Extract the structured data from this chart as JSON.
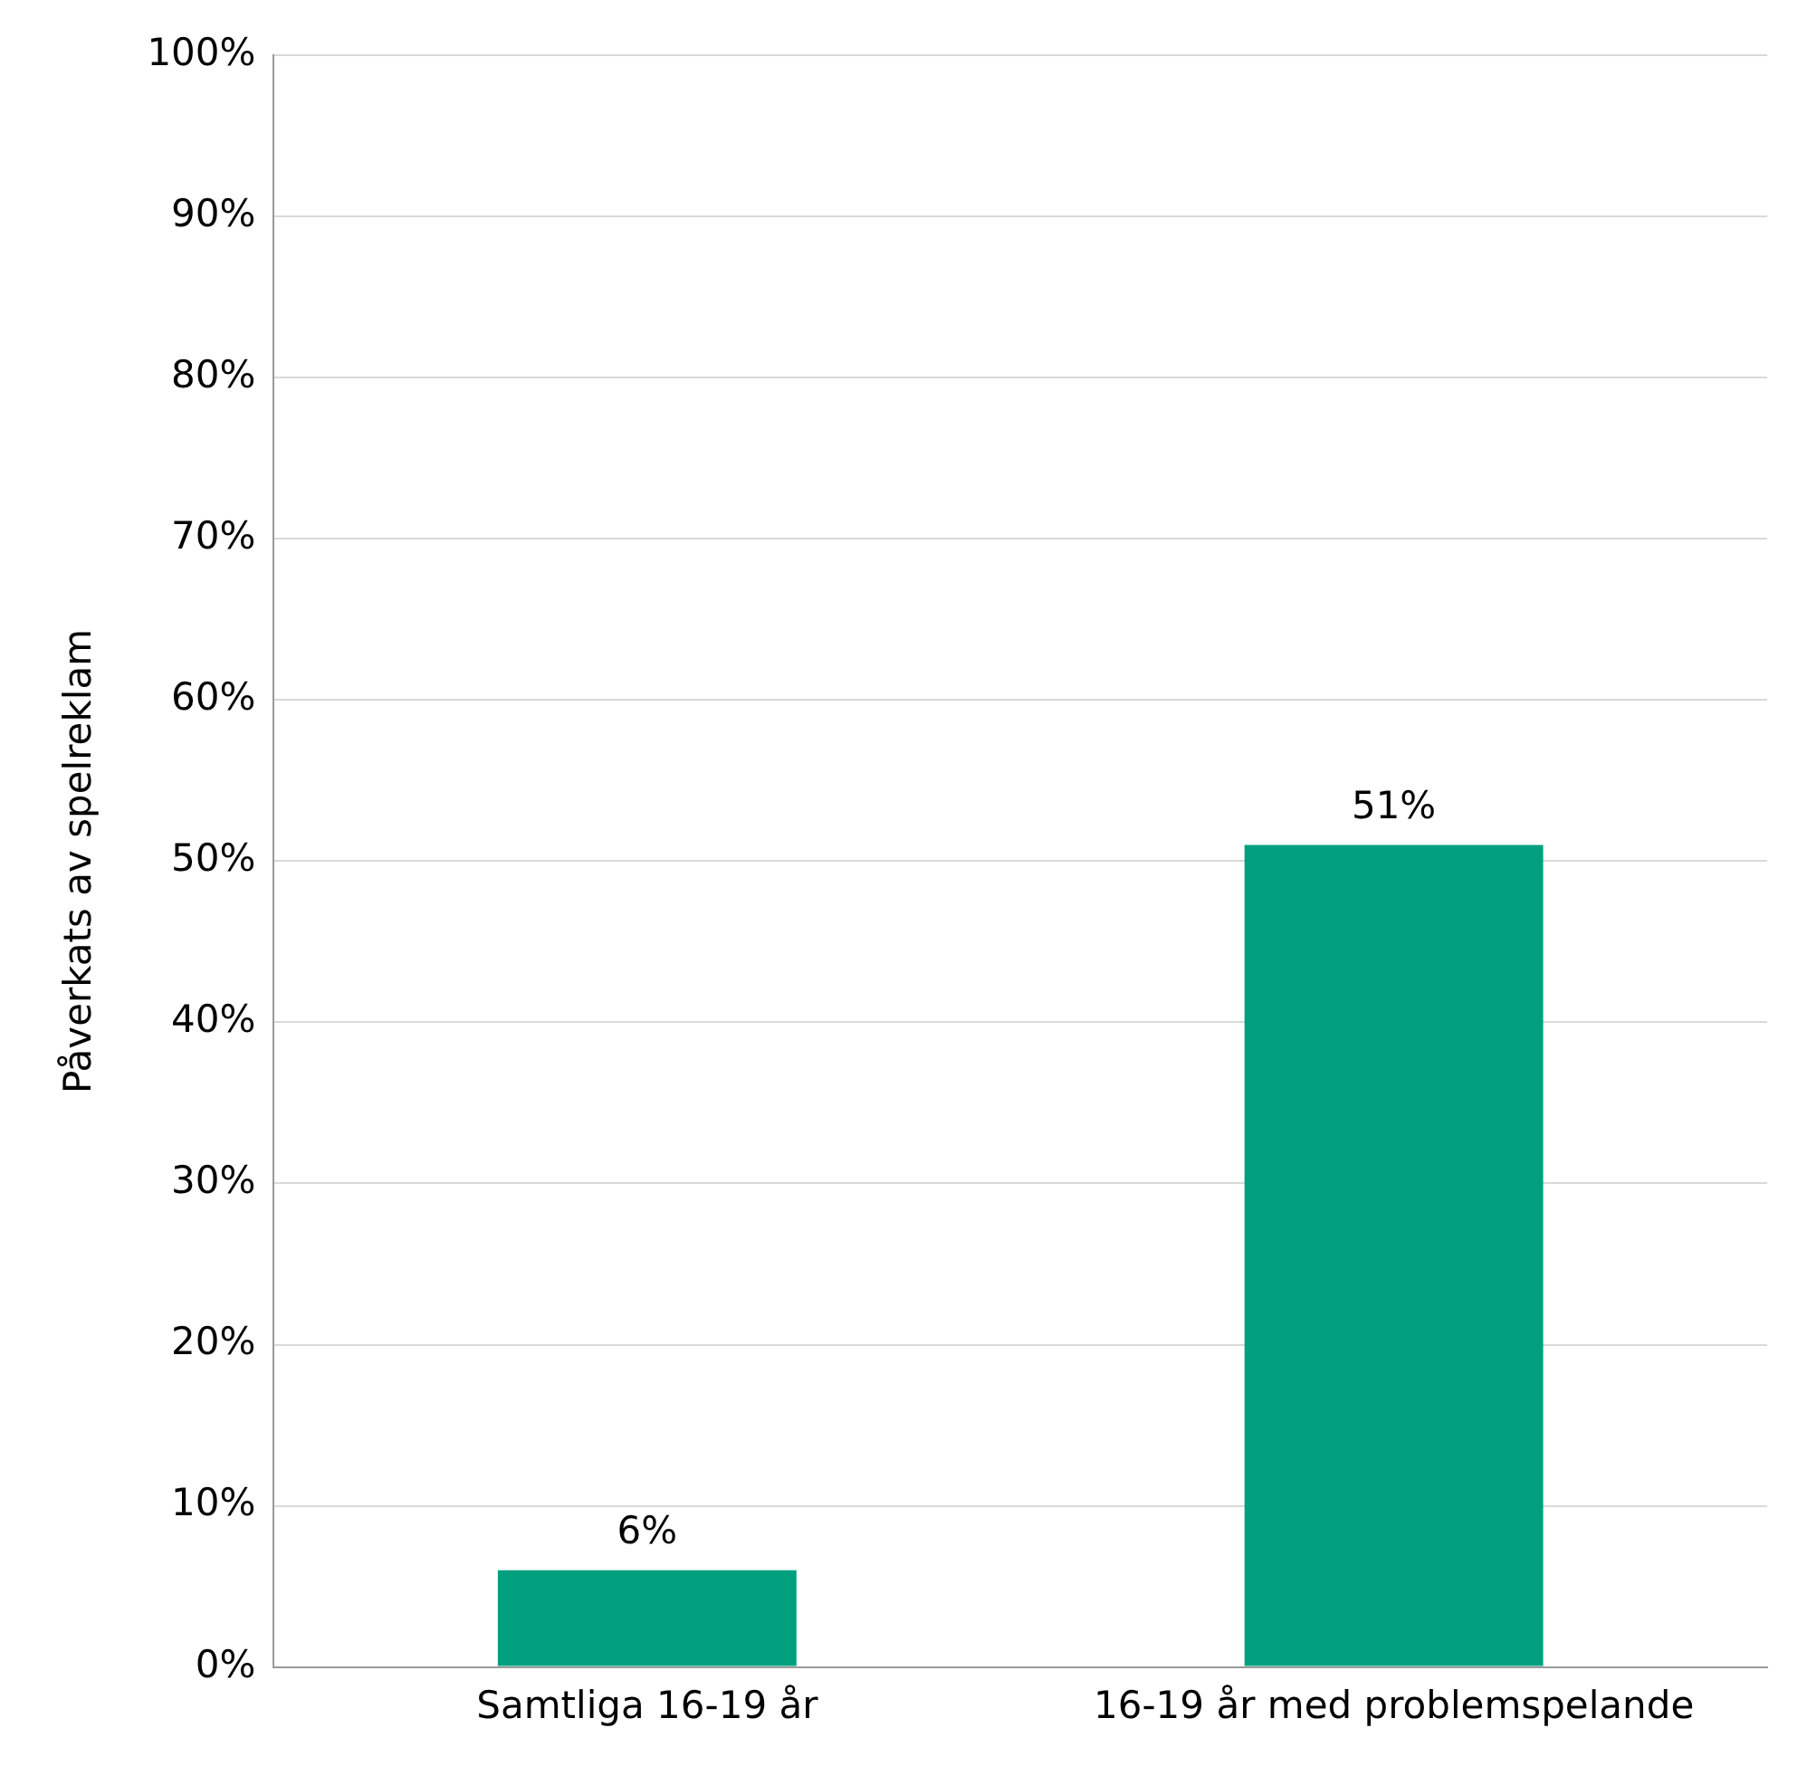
{
  "chart_data": {
    "type": "bar",
    "ylabel": "Påverkats av spelreklam",
    "categories": [
      "Samtliga 16-19 år",
      "16-19 år med problemspelande"
    ],
    "values": [
      6,
      51
    ],
    "color": "#00a07f",
    "value_labels": [
      "6%",
      "51%"
    ],
    "ylim": [
      0,
      100
    ],
    "yticks": [
      {
        "value": 0,
        "label": "0%"
      },
      {
        "value": 10,
        "label": "10%"
      },
      {
        "value": 20,
        "label": "20%"
      },
      {
        "value": 30,
        "label": "30%"
      },
      {
        "value": 40,
        "label": "40%"
      },
      {
        "value": 50,
        "label": "50%"
      },
      {
        "value": 60,
        "label": "60%"
      },
      {
        "value": 70,
        "label": "70%"
      },
      {
        "value": 80,
        "label": "80%"
      },
      {
        "value": 90,
        "label": "90%"
      },
      {
        "value": 100,
        "label": "100%"
      }
    ],
    "grid": "y",
    "legend": false
  }
}
